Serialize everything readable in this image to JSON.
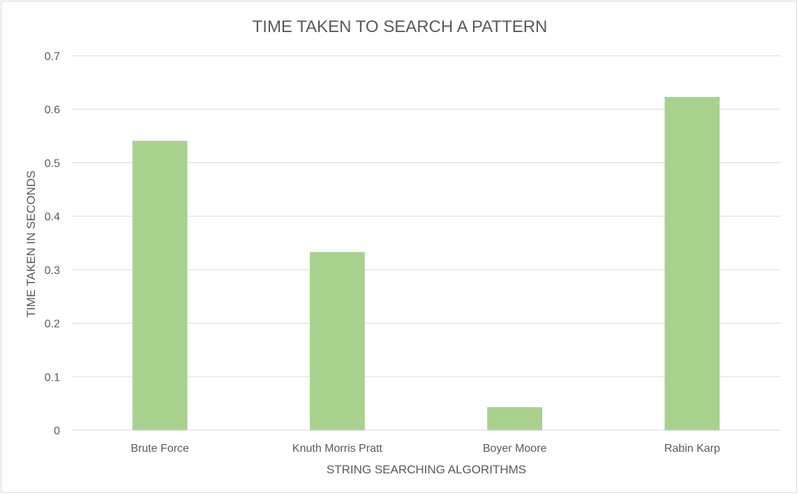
{
  "chart_data": {
    "type": "bar",
    "title": "TIME TAKEN TO SEARCH A PATTERN",
    "xlabel": "STRING SEARCHING ALGORITHMS",
    "ylabel": "TIME TAKEN IN SECONDS",
    "categories": [
      "Brute Force",
      "Knuth Morris Pratt",
      "Boyer Moore",
      "Rabin Karp"
    ],
    "values": [
      0.541,
      0.333,
      0.043,
      0.623
    ],
    "ylim": [
      0,
      0.7
    ],
    "yticks": [
      "0",
      "0.1",
      "0.2",
      "0.3",
      "0.4",
      "0.5",
      "0.6",
      "0.7"
    ],
    "grid": true,
    "legend": "none",
    "bar_color": "#a9d18e"
  }
}
